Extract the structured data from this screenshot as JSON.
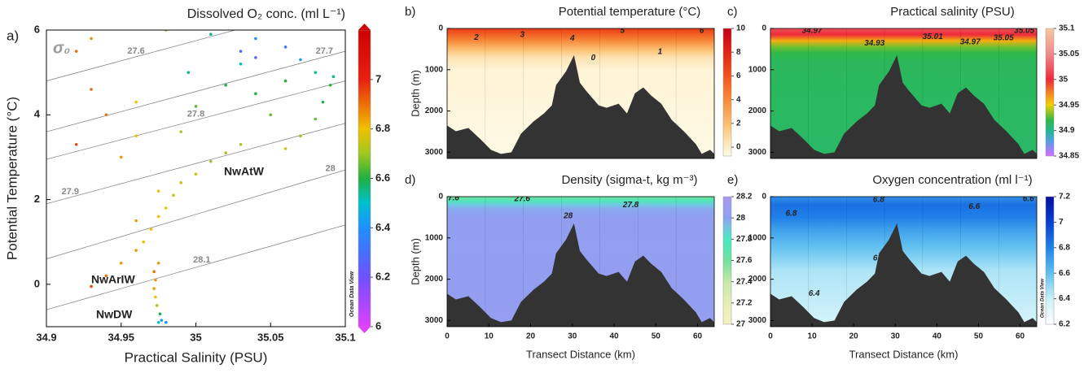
{
  "chart_data": [
    {
      "type": "scatter",
      "label": "a)",
      "title": "Dissolved O₂ conc. (ml L⁻¹)",
      "xlabel": "Practical Salinity (PSU)",
      "ylabel": "Potential Temperature (°C)",
      "xlim": [
        34.9,
        35.1
      ],
      "xticks": [
        34.9,
        34.95,
        35,
        35.05,
        35.1
      ],
      "ylim": [
        -1,
        6
      ],
      "yticks": [
        0,
        2,
        4,
        6
      ],
      "x": [
        34.975,
        34.977,
        34.98,
        34.976,
        34.974,
        34.973,
        34.972,
        34.973,
        34.972,
        34.975,
        34.93,
        34.94,
        34.95,
        34.96,
        34.965,
        34.97,
        34.975,
        34.98,
        34.96,
        34.985,
        34.99,
        35.0,
        35.01,
        34.975,
        35.02,
        35.03,
        35.06,
        35.07,
        35.08,
        35.085,
        35.09,
        35.092,
        35.06,
        35.04,
        35.02,
        35.0,
        34.99,
        34.995,
        35.03,
        35.07,
        35.06,
        35.04,
        35.01,
        34.98,
        35.08,
        35.05,
        34.93,
        34.92,
        34.94,
        34.92,
        34.93,
        34.95,
        34.96,
        34.96,
        35.03,
        35.04
      ],
      "values": [
        -0.9,
        -0.85,
        -0.9,
        -0.7,
        -0.5,
        -0.3,
        -0.1,
        0.1,
        0.3,
        0.5,
        -0.05,
        0.2,
        0.5,
        0.8,
        1.0,
        1.3,
        1.6,
        1.8,
        1.5,
        2.1,
        2.4,
        2.6,
        2.9,
        2.2,
        3.1,
        3.3,
        3.2,
        3.5,
        3.9,
        4.3,
        4.7,
        4.9,
        4.8,
        4.5,
        4.7,
        4.2,
        3.6,
        5.0,
        5.2,
        5.3,
        5.6,
        5.8,
        5.9,
        6.0,
        5.0,
        4.0,
        5.8,
        5.5,
        4.0,
        3.3,
        4.6,
        3.0,
        4.3,
        3.5,
        5.5,
        5.35
      ],
      "color_values": [
        6.5,
        6.45,
        6.4,
        6.6,
        6.7,
        6.8,
        6.85,
        6.85,
        6.9,
        6.85,
        6.95,
        6.9,
        6.85,
        6.85,
        6.8,
        6.8,
        6.8,
        6.8,
        6.85,
        6.75,
        6.75,
        6.75,
        6.7,
        6.8,
        6.7,
        6.7,
        6.75,
        6.7,
        6.65,
        6.6,
        6.6,
        6.55,
        6.6,
        6.6,
        6.6,
        6.65,
        6.7,
        6.55,
        6.5,
        6.45,
        6.35,
        6.4,
        6.55,
        6.7,
        6.55,
        6.65,
        6.85,
        6.9,
        6.9,
        6.95,
        6.9,
        6.85,
        6.8,
        6.8,
        6.3,
        6.25
      ],
      "colorbar": {
        "lim": [
          6,
          7.2
        ],
        "ticks": [
          6,
          6.2,
          6.4,
          6.6,
          6.8,
          7
        ]
      },
      "colormap": [
        [
          6,
          "#e040ff"
        ],
        [
          6.2,
          "#7050ff"
        ],
        [
          6.4,
          "#1e90ff"
        ],
        [
          6.5,
          "#00c0d0"
        ],
        [
          6.6,
          "#20b040"
        ],
        [
          6.7,
          "#a0c820"
        ],
        [
          6.8,
          "#f0c000"
        ],
        [
          7,
          "#e82010"
        ],
        [
          7.2,
          "#d00000"
        ]
      ],
      "isopycnal_symbol": "σ₀",
      "isopycnals": [
        {
          "value": 27.6,
          "points": [
            [
              34.9,
              4.8
            ],
            [
              35.1,
              6.7
            ]
          ]
        },
        {
          "value": 27.7,
          "points": [
            [
              34.9,
              3.6
            ],
            [
              35.1,
              5.5
            ]
          ]
        },
        {
          "value": 27.8,
          "points": [
            [
              34.9,
              2.95
            ],
            [
              35.1,
              4.8
            ]
          ]
        },
        {
          "value": 27.9,
          "points": [
            [
              34.9,
              1.9
            ],
            [
              35.1,
              3.8
            ]
          ]
        },
        {
          "value": 28,
          "points": [
            [
              34.9,
              0.6
            ],
            [
              35.1,
              2.7
            ]
          ]
        },
        {
          "value": 28.1,
          "points": [
            [
              34.9,
              -0.6
            ],
            [
              35.1,
              1.4
            ]
          ]
        }
      ],
      "annotations": [
        "NwAtW",
        "NwArIW",
        "NwDW"
      ],
      "watermark": "Ocean Data View"
    },
    {
      "type": "section",
      "label": "b)",
      "title": "Potential temperature (°C)",
      "ylabel": "Depth (m)",
      "xlim": [
        0,
        64
      ],
      "ylim": [
        0,
        3150
      ],
      "yticks": [
        0,
        1000,
        2000,
        3000
      ],
      "profile": {
        "depth": [
          0,
          100,
          200,
          300,
          400,
          500,
          700,
          1000,
          3150
        ],
        "values": [
          7,
          6,
          5,
          4,
          3,
          2,
          0.5,
          -0.3,
          -0.7
        ]
      },
      "colorbar": {
        "lim": [
          -0.75,
          10
        ],
        "ticks": [
          0,
          2,
          4,
          6,
          8,
          10
        ]
      },
      "colormap": [
        [
          -0.75,
          "#fffbe8"
        ],
        [
          0,
          "#fdeec8"
        ],
        [
          2,
          "#fbbd6e"
        ],
        [
          4,
          "#f7893a"
        ],
        [
          6,
          "#f0541e"
        ],
        [
          8,
          "#e02414"
        ],
        [
          10,
          "#c4001a"
        ]
      ],
      "contour_labels": [
        {
          "value": 2,
          "x": 7,
          "depth": 220
        },
        {
          "value": 3,
          "x": 18,
          "depth": 150
        },
        {
          "value": 4,
          "x": 30,
          "depth": 240
        },
        {
          "value": 5,
          "x": 42,
          "depth": 60
        },
        {
          "value": 6,
          "x": 61,
          "depth": 60
        },
        {
          "value": 0,
          "x": 35,
          "depth": 720
        },
        {
          "value": 1,
          "x": 51,
          "depth": 570
        }
      ]
    },
    {
      "type": "section",
      "label": "c)",
      "title": "Practical salinity (PSU)",
      "xlim": [
        0,
        64
      ],
      "ylim": [
        0,
        3150
      ],
      "yticks": [
        0,
        1000,
        2000,
        3000
      ],
      "profile": {
        "depth": [
          0,
          150,
          300,
          450,
          600,
          800,
          3150
        ],
        "values": [
          35.02,
          35.0,
          34.96,
          34.93,
          34.92,
          34.915,
          34.912
        ]
      },
      "colorbar": {
        "lim": [
          34.85,
          35.1
        ],
        "ticks": [
          34.85,
          34.9,
          34.95,
          35,
          35.05,
          35.1
        ]
      },
      "colormap": [
        [
          34.85,
          "#d66bff"
        ],
        [
          34.88,
          "#4fa0e0"
        ],
        [
          34.9,
          "#20b890"
        ],
        [
          34.92,
          "#2fb84a"
        ],
        [
          34.95,
          "#f0d000"
        ],
        [
          34.97,
          "#f59020"
        ],
        [
          35,
          "#ee2a3a"
        ],
        [
          35.05,
          "#f08a8a"
        ],
        [
          35.1,
          "#f6c8a0"
        ]
      ],
      "contour_labels": [
        {
          "value": 34.97,
          "x": 10,
          "depth": 60
        },
        {
          "value": 35.01,
          "x": 39,
          "depth": 200
        },
        {
          "value": 35.05,
          "x": 56,
          "depth": 230
        },
        {
          "value": 35.05,
          "x": 61,
          "depth": 60
        },
        {
          "value": 34.93,
          "x": 25,
          "depth": 360
        },
        {
          "value": 34.97,
          "x": 48,
          "depth": 330
        }
      ]
    },
    {
      "type": "section",
      "label": "d)",
      "title": "Density (sigma-t, kg m⁻³)",
      "xlabel": "Transect Distance (km)",
      "ylabel": "Depth (m)",
      "xlim": [
        0,
        64
      ],
      "xticks": [
        0,
        10,
        20,
        30,
        40,
        50,
        60
      ],
      "ylim": [
        0,
        3150
      ],
      "yticks": [
        0,
        1000,
        2000,
        3000
      ],
      "profile": {
        "depth": [
          0,
          100,
          200,
          300,
          500,
          3150
        ],
        "values": [
          27.6,
          27.75,
          27.9,
          27.98,
          28.03,
          28.05
        ]
      },
      "colorbar": {
        "lim": [
          27,
          28.2
        ],
        "ticks": [
          27,
          27.2,
          27.4,
          27.6,
          27.8,
          28,
          28.2
        ]
      },
      "colormap": [
        [
          27,
          "#f5f0c0"
        ],
        [
          27.2,
          "#e6eeb8"
        ],
        [
          27.4,
          "#c6e8a8"
        ],
        [
          27.6,
          "#70e0a0"
        ],
        [
          27.8,
          "#48e8c0"
        ],
        [
          27.9,
          "#70c8e0"
        ],
        [
          28,
          "#8ea0f0"
        ],
        [
          28.2,
          "#a89af0"
        ]
      ],
      "contour_labels": [
        {
          "value": 27.6,
          "x": 1,
          "depth": 40
        },
        {
          "value": 27.6,
          "x": 18,
          "depth": 60
        },
        {
          "value": 27.8,
          "x": 44,
          "depth": 200
        },
        {
          "value": 28,
          "x": 29,
          "depth": 470
        }
      ]
    },
    {
      "type": "section",
      "label": "e)",
      "title": "Oxygen concentration (ml l⁻¹)",
      "xlabel": "Transect Distance (km)",
      "xlim": [
        0,
        64
      ],
      "xticks": [
        0,
        10,
        20,
        30,
        40,
        50,
        60
      ],
      "ylim": [
        0,
        3150
      ],
      "yticks": [
        0,
        1000,
        2000,
        3000
      ],
      "profile": {
        "depth": [
          0,
          200,
          500,
          800,
          1200,
          1800,
          3150
        ],
        "values": [
          6.75,
          6.85,
          6.8,
          6.7,
          6.6,
          6.45,
          6.35
        ]
      },
      "colorbar": {
        "lim": [
          6.2,
          7.2
        ],
        "ticks": [
          6.2,
          6.4,
          6.6,
          6.8,
          7,
          7.2
        ]
      },
      "colormap": [
        [
          6.2,
          "#ffffff"
        ],
        [
          6.4,
          "#c8f0f8"
        ],
        [
          6.6,
          "#60c0f0"
        ],
        [
          6.8,
          "#2080e8"
        ],
        [
          7,
          "#0a40d0"
        ],
        [
          7.2,
          "#0010a0"
        ]
      ],
      "contour_labels": [
        {
          "value": 6.8,
          "x": 5,
          "depth": 410
        },
        {
          "value": 6.8,
          "x": 26,
          "depth": 80
        },
        {
          "value": 6.6,
          "x": 62,
          "depth": 60
        },
        {
          "value": 6.6,
          "x": 49,
          "depth": 240
        },
        {
          "value": 6.8,
          "x": 26,
          "depth": 1490
        },
        {
          "value": 6.4,
          "x": 10.5,
          "depth": 2350
        }
      ],
      "watermark": "Ocean Data View"
    }
  ],
  "bathymetry": {
    "x": [
      0,
      2.1,
      5.1,
      8,
      10.5,
      12.9,
      15.4,
      17.7,
      20.7,
      23.2,
      25.1,
      26.1,
      28.5,
      30.4,
      31.8,
      33.3,
      36.3,
      38.2,
      41.1,
      43.1,
      45,
      47,
      48.9,
      51.3,
      53.8,
      56.7,
      59.6,
      61,
      63,
      64
    ],
    "depth": [
      2353,
      2490,
      2412,
      2686,
      2941,
      3039,
      3000,
      2549,
      2255,
      2059,
      1863,
      1373,
      1039,
      647,
      1314,
      1510,
      1863,
      1922,
      1824,
      2059,
      1569,
      1431,
      1627,
      1824,
      2216,
      2490,
      2804,
      3039,
      2941,
      3039
    ]
  }
}
